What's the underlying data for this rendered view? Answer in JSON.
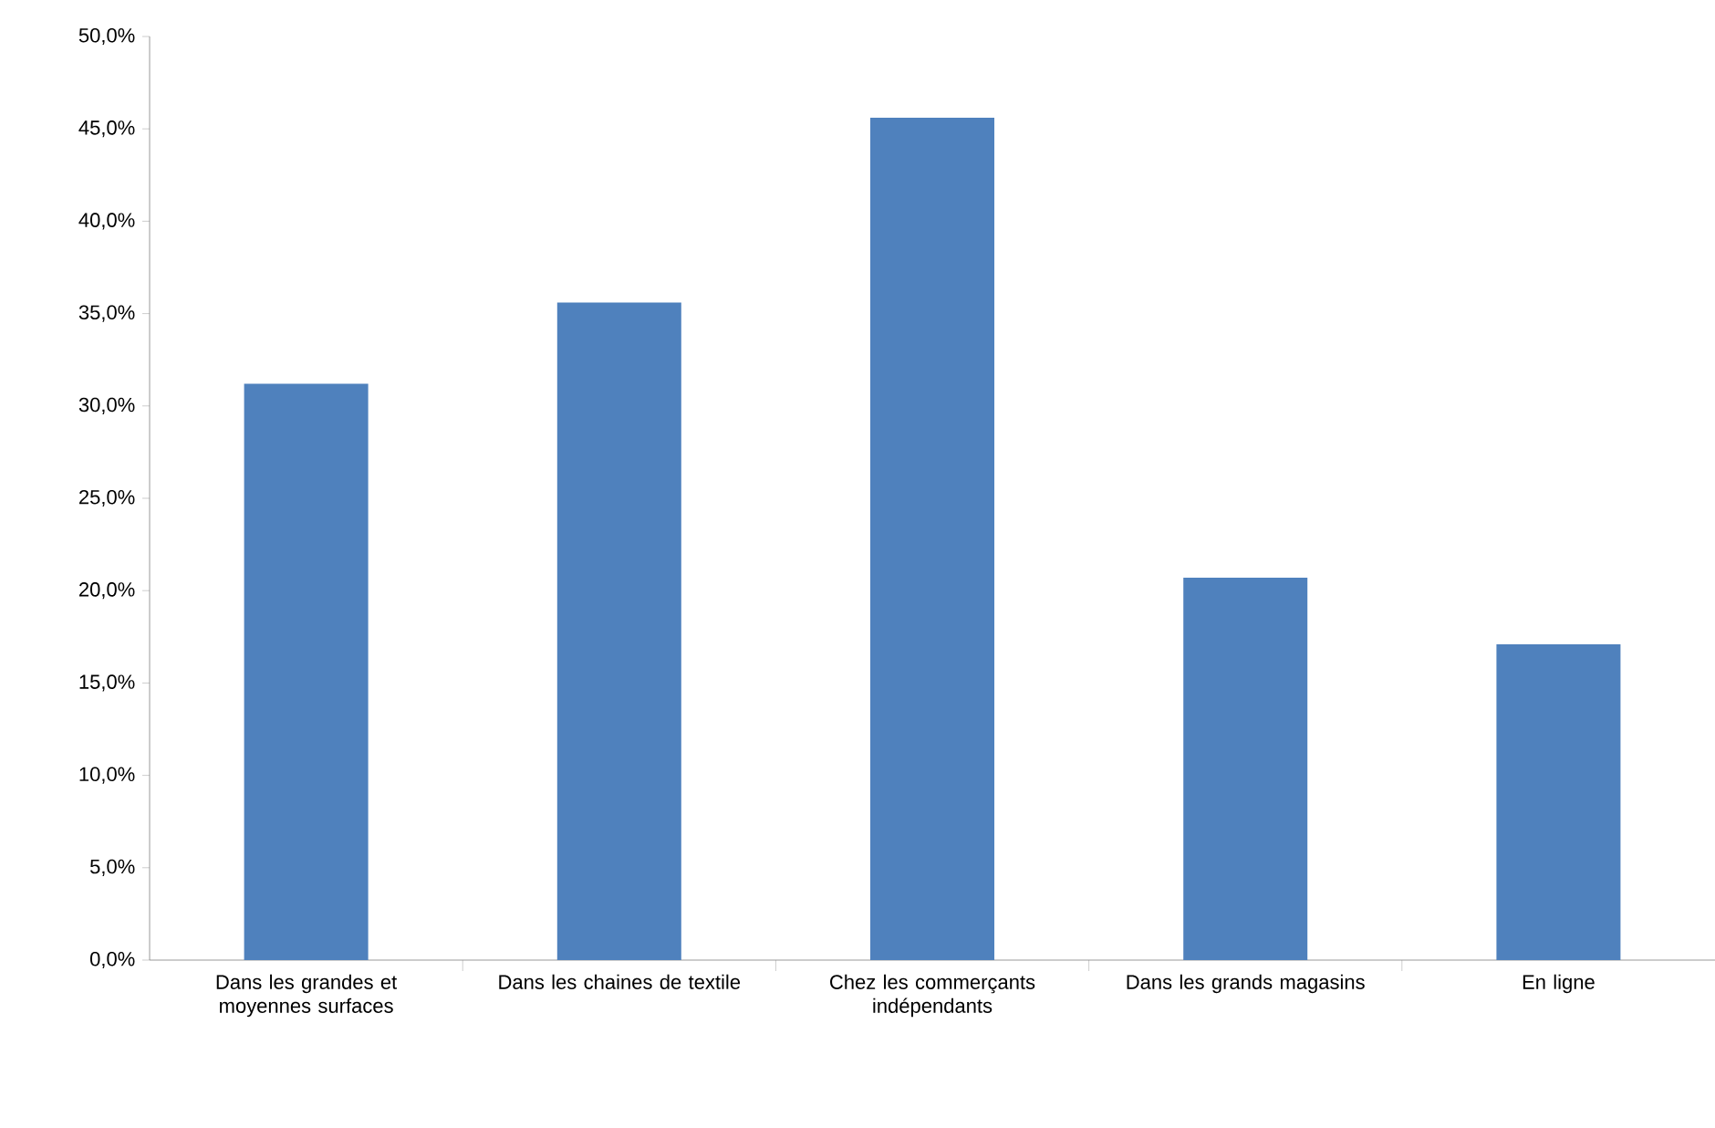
{
  "chart_data": {
    "type": "bar",
    "categories": [
      "Dans les grandes et moyennes surfaces",
      "Dans les chaines de textile",
      "Chez les commerçants indépendants",
      "Dans les grands magasins",
      "En ligne"
    ],
    "values": [
      31.2,
      35.6,
      45.6,
      20.7,
      17.1
    ],
    "color": "#4f81bd",
    "ylim": [
      0,
      50
    ],
    "yticks": [
      {
        "value": 0,
        "label": "0,0%"
      },
      {
        "value": 5,
        "label": "5,0%"
      },
      {
        "value": 10,
        "label": "10,0%"
      },
      {
        "value": 15,
        "label": "15,0%"
      },
      {
        "value": 20,
        "label": "20,0%"
      },
      {
        "value": 25,
        "label": "25,0%"
      },
      {
        "value": 30,
        "label": "30,0%"
      },
      {
        "value": 35,
        "label": "35,0%"
      },
      {
        "value": 40,
        "label": "40,0%"
      },
      {
        "value": 45,
        "label": "45,0%"
      },
      {
        "value": 50,
        "label": "50,0%"
      }
    ],
    "grid": false
  }
}
